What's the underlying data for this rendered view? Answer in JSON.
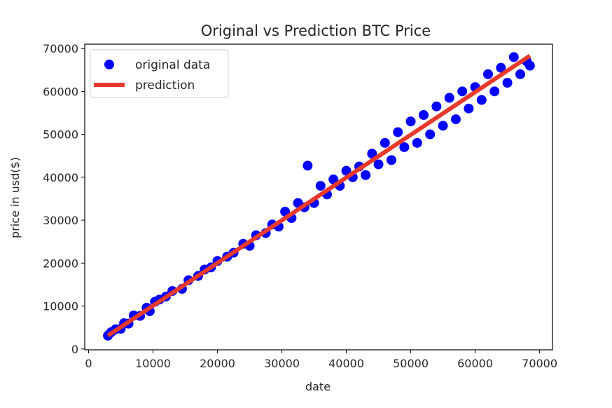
{
  "chart_data": {
    "type": "scatter",
    "title": "Original vs Prediction BTC Price",
    "xlabel": "date",
    "ylabel": "price in usd($)",
    "xlim": [
      -600,
      72000
    ],
    "ylim": [
      -200,
      71000
    ],
    "xticks": [
      0,
      10000,
      20000,
      30000,
      40000,
      50000,
      60000,
      70000
    ],
    "yticks": [
      0,
      10000,
      20000,
      30000,
      40000,
      50000,
      60000,
      70000
    ],
    "grid": false,
    "legend_position": "top-left",
    "series": [
      {
        "name": "original data",
        "kind": "scatter",
        "color": "#0000ff",
        "x": [
          3000,
          3500,
          4200,
          5000,
          5500,
          6200,
          7000,
          8000,
          9000,
          9500,
          10300,
          11000,
          12000,
          13000,
          14500,
          15500,
          17000,
          18000,
          19000,
          20000,
          21500,
          22500,
          24000,
          25000,
          26000,
          27500,
          28500,
          29500,
          30500,
          31500,
          32500,
          33500,
          34000,
          35000,
          36000,
          37000,
          38000,
          39000,
          40000,
          41000,
          42000,
          43000,
          44000,
          45000,
          46000,
          47000,
          48000,
          49000,
          50000,
          51000,
          52000,
          53000,
          54000,
          55000,
          56000,
          57000,
          58000,
          59000,
          60000,
          61000,
          62000,
          63000,
          64000,
          65000,
          66000,
          67000,
          68000,
          68500
        ],
        "y": [
          3100,
          3900,
          4600,
          4700,
          6000,
          5900,
          7800,
          7700,
          9600,
          8800,
          11000,
          11500,
          12200,
          13500,
          14000,
          16000,
          17000,
          18500,
          19000,
          20500,
          21500,
          22400,
          24500,
          24000,
          26500,
          27000,
          29000,
          28500,
          32000,
          30500,
          34000,
          33000,
          42700,
          34000,
          38000,
          36000,
          39500,
          38000,
          41500,
          40000,
          42500,
          40500,
          45500,
          43000,
          48000,
          44000,
          50500,
          47000,
          53000,
          48000,
          54500,
          50000,
          56500,
          52000,
          58500,
          53500,
          60000,
          56000,
          61000,
          58000,
          64000,
          60000,
          65500,
          62000,
          68000,
          64000,
          67000,
          66000
        ]
      },
      {
        "name": "prediction",
        "kind": "line",
        "color": "#e8392b",
        "x": [
          3000,
          68500
        ],
        "y": [
          3100,
          68300
        ]
      }
    ]
  }
}
